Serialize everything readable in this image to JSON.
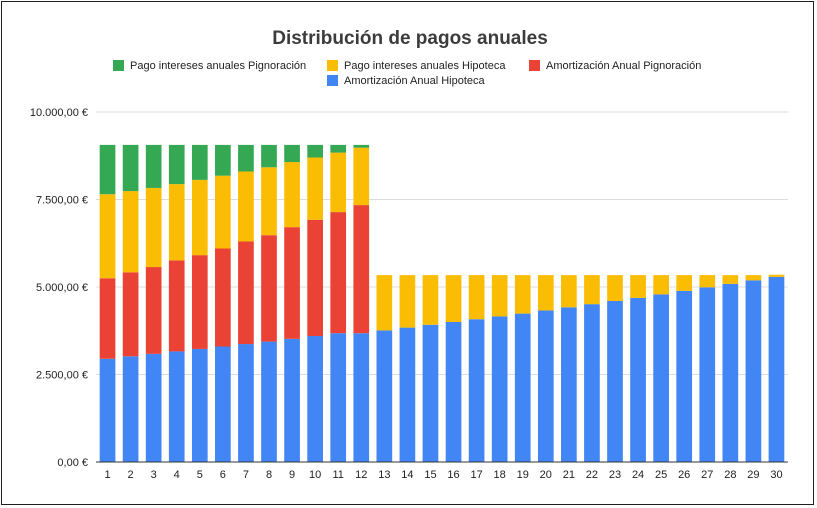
{
  "chart_data": {
    "type": "bar",
    "stacked": true,
    "title": "Distribución de pagos anuales",
    "xlabel": "",
    "ylabel": "",
    "ylim": [
      0,
      10000
    ],
    "y_ticks": [
      0,
      2500,
      5000,
      7500,
      10000
    ],
    "y_tick_labels": [
      "0,00 €",
      "2.500,00 €",
      "5.000,00 €",
      "7.500,00 €",
      "10.000,00 €"
    ],
    "grid": true,
    "legend_position": "top",
    "categories": [
      "1",
      "2",
      "3",
      "4",
      "5",
      "6",
      "7",
      "8",
      "9",
      "10",
      "11",
      "12",
      "13",
      "14",
      "15",
      "16",
      "17",
      "18",
      "19",
      "20",
      "21",
      "22",
      "23",
      "24",
      "25",
      "26",
      "27",
      "28",
      "29",
      "30"
    ],
    "series": [
      {
        "name": "Amortización Anual Hipoteca",
        "color": "#4285f4",
        "values": [
          2950,
          3020,
          3090,
          3160,
          3230,
          3300,
          3370,
          3440,
          3520,
          3600,
          3680,
          3680,
          3760,
          3840,
          3920,
          4000,
          4080,
          4160,
          4240,
          4330,
          4420,
          4510,
          4600,
          4690,
          4790,
          4890,
          4990,
          5090,
          5190,
          5290
        ]
      },
      {
        "name": "Amortización Anual Pignoración",
        "color": "#ea4335",
        "values": [
          2300,
          2400,
          2480,
          2600,
          2680,
          2800,
          2930,
          3040,
          3190,
          3320,
          3460,
          3660,
          0,
          0,
          0,
          0,
          0,
          0,
          0,
          0,
          0,
          0,
          0,
          0,
          0,
          0,
          0,
          0,
          0,
          0
        ]
      },
      {
        "name": "Pago intereses anuales Hipoteca",
        "color": "#fbbc04",
        "values": [
          2400,
          2320,
          2260,
          2180,
          2150,
          2080,
          2000,
          1940,
          1860,
          1780,
          1700,
          1640,
          1580,
          1500,
          1420,
          1340,
          1260,
          1180,
          1100,
          1010,
          920,
          830,
          740,
          650,
          550,
          450,
          350,
          250,
          150,
          60
        ]
      },
      {
        "name": "Pago intereses anuales Pignoración",
        "color": "#34a853",
        "values": [
          1410,
          1320,
          1230,
          1120,
          1000,
          880,
          760,
          640,
          490,
          360,
          220,
          80,
          0,
          0,
          0,
          0,
          0,
          0,
          0,
          0,
          0,
          0,
          0,
          0,
          0,
          0,
          0,
          0,
          0,
          0
        ]
      }
    ],
    "legend": [
      {
        "name": "Pago intereses anuales Pignoración",
        "color": "#34a853"
      },
      {
        "name": "Pago intereses anuales Hipoteca",
        "color": "#fbbc04"
      },
      {
        "name": "Amortización Anual Pignoración",
        "color": "#ea4335"
      },
      {
        "name": "Amortización Anual Hipoteca",
        "color": "#4285f4"
      }
    ]
  }
}
